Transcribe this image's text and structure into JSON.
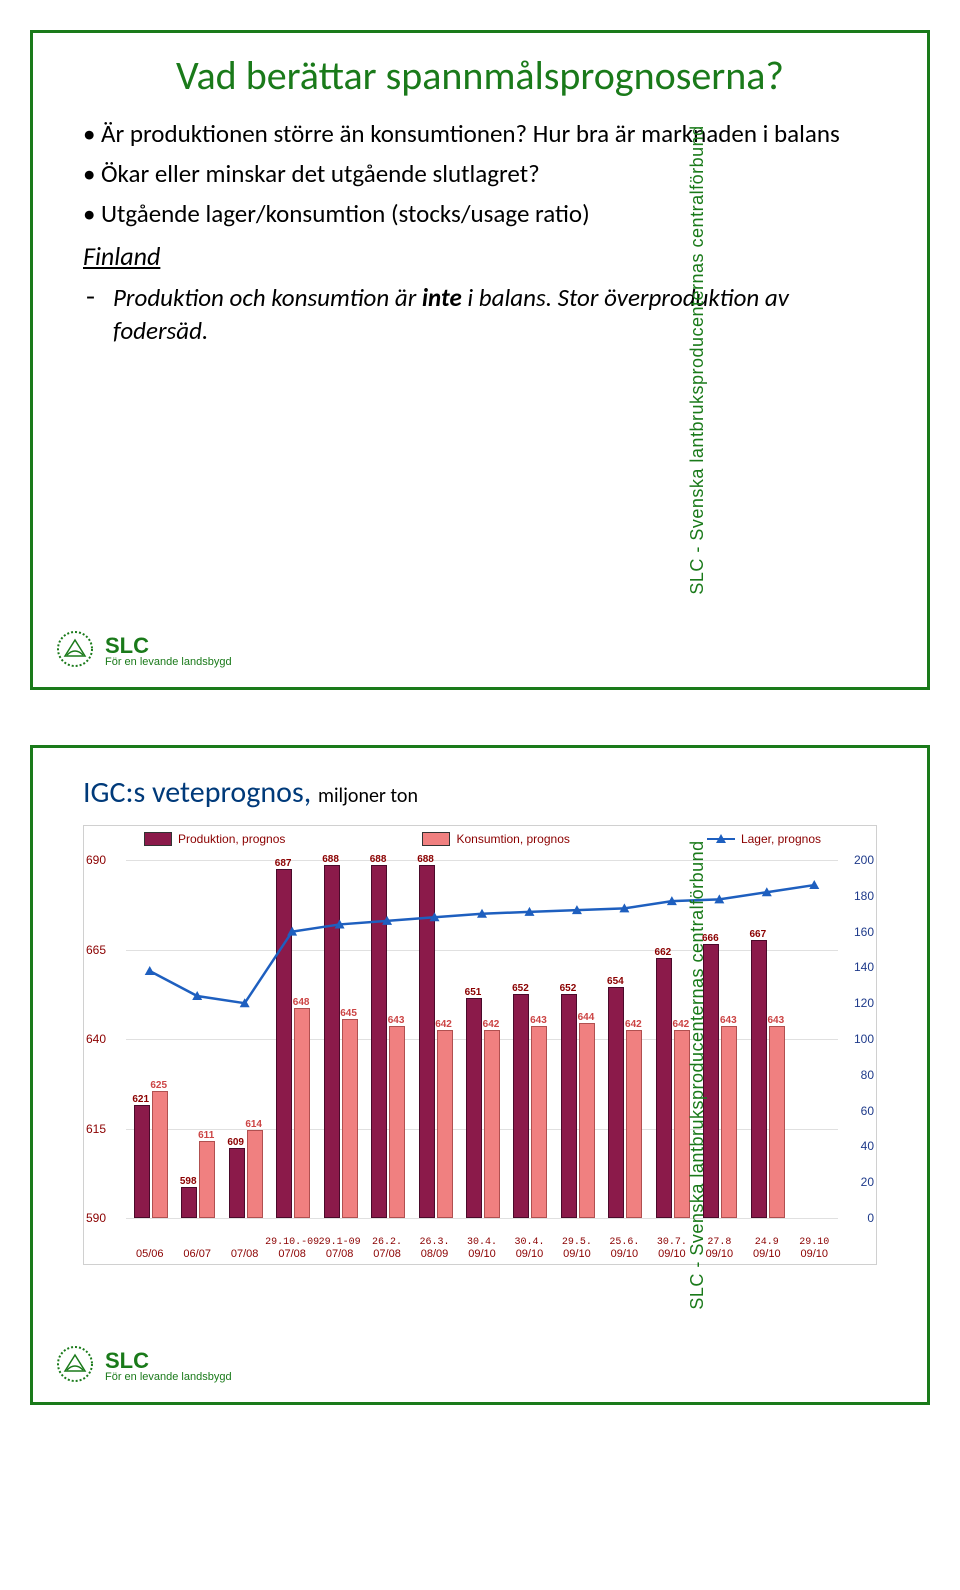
{
  "slide1": {
    "title": "Vad berättar spannmålsprognoserna?",
    "bullets": [
      "Är produktionen större än konsumtionen? Hur bra är marknaden i balans",
      "Ökar eller minskar det utgående slutlagret?",
      "Utgående lager/konsumtion (stocks/usage ratio)"
    ],
    "subhead": "Finland",
    "dash_before": "Produktion och konsumtion är ",
    "dash_bold": "inte",
    "dash_after": " i balans. Stor överproduktion av fodersäd."
  },
  "footer": {
    "brand": "SLC",
    "tagline": "För en levande landsbygd"
  },
  "sidebar_text": "SLC  -  Svenska lantbruksproducenternas centralförbund",
  "slide2": {
    "title_main": "IGC:s veteprognos, ",
    "title_sub": "miljoner ton",
    "legend": {
      "prod": "Produktion, prognos",
      "kons": "Konsumtion, prognos",
      "lager": "Lager, prognos"
    },
    "colors": {
      "prod_fill": "#8b1a4a",
      "kons_fill": "#f08080",
      "line": "#1e5fbf",
      "legend_text": "#8b0000",
      "right_axis": "#1e3a8a",
      "grid": "#e0e0e0",
      "bg": "#ffffff"
    },
    "y_left": {
      "min": 590,
      "max": 690,
      "ticks": [
        590,
        615,
        640,
        665,
        690
      ]
    },
    "y_right": {
      "min": 0,
      "max": 200,
      "ticks": [
        0,
        20,
        40,
        60,
        80,
        100,
        120,
        140,
        160,
        180,
        200
      ]
    },
    "rows": [
      {
        "x": "05/06",
        "date": "",
        "prod": 621,
        "kons": 625,
        "lager": 138
      },
      {
        "x": "06/07",
        "date": "",
        "prod": 598,
        "kons": 611,
        "lager": 124
      },
      {
        "x": "07/08",
        "date": "",
        "prod": 609,
        "kons": 614,
        "lager": 120
      },
      {
        "x": "07/08",
        "date": "29.10.-09",
        "prod": 687,
        "kons": 648,
        "lager": 160
      },
      {
        "x": "07/08",
        "date": "29.1-09",
        "prod": 688,
        "kons": 645,
        "lager": 164
      },
      {
        "x": "07/08",
        "date": "26.2.",
        "prod": 688,
        "kons": 643,
        "lager": 166
      },
      {
        "x": "08/09",
        "date": "26.3.",
        "prod": 688,
        "kons": 642,
        "lager": 168
      },
      {
        "x": "09/10",
        "date": "30.4.",
        "prod": 651,
        "kons": 642,
        "lager": 170
      },
      {
        "x": "09/10",
        "date": "30.4.",
        "prod": 652,
        "kons": 643,
        "lager": 171
      },
      {
        "x": "09/10",
        "date": "29.5.",
        "prod": 652,
        "kons": 644,
        "lager": 172
      },
      {
        "x": "09/10",
        "date": "25.6.",
        "prod": 654,
        "kons": 642,
        "lager": 173
      },
      {
        "x": "09/10",
        "date": "30.7.",
        "prod": 662,
        "kons": 642,
        "lager": 177
      },
      {
        "x": "09/10",
        "date": "27.8",
        "prod": 666,
        "kons": 643,
        "lager": 178
      },
      {
        "x": "09/10",
        "date": "24.9",
        "prod": 667,
        "kons": 643,
        "lager": 182
      },
      {
        "x": "09/10",
        "date": "29.10",
        "prod": null,
        "kons": null,
        "lager": 186
      }
    ]
  }
}
